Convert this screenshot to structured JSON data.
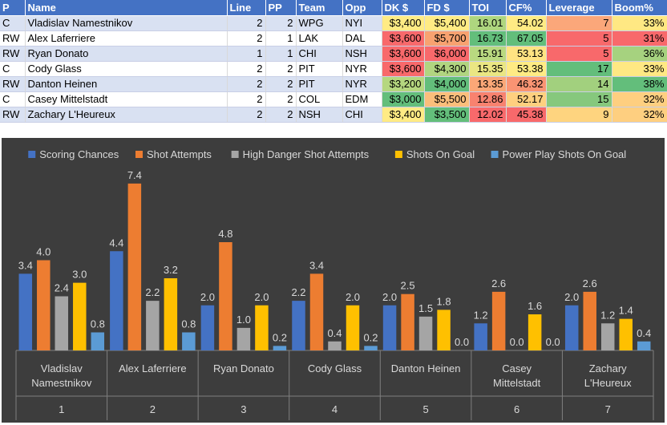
{
  "table": {
    "headers": [
      "P",
      "Name",
      "Line",
      "PP",
      "Team",
      "Opp",
      "DK $",
      "FD $",
      "TOI",
      "CF%",
      "Leverage",
      "Boom%"
    ],
    "rows": [
      {
        "P": "C",
        "Name": "Vladislav Namestnikov",
        "Line": "2",
        "PP": "2",
        "Team": "WPG",
        "Opp": "NYI",
        "DK": "$3,400",
        "FD": "$5,400",
        "TOI": "16.01",
        "CF": "54.02",
        "Leverage": "7",
        "Boom": "33%"
      },
      {
        "P": "RW",
        "Name": "Alex Laferriere",
        "Line": "2",
        "PP": "1",
        "Team": "LAK",
        "Opp": "DAL",
        "DK": "$3,600",
        "FD": "$5,700",
        "TOI": "16.73",
        "CF": "67.05",
        "Leverage": "5",
        "Boom": "31%"
      },
      {
        "P": "RW",
        "Name": "Ryan Donato",
        "Line": "1",
        "PP": "1",
        "Team": "CHI",
        "Opp": "NSH",
        "DK": "$3,600",
        "FD": "$6,000",
        "TOI": "15.91",
        "CF": "53.13",
        "Leverage": "5",
        "Boom": "36%"
      },
      {
        "P": "C",
        "Name": "Cody Glass",
        "Line": "2",
        "PP": "2",
        "Team": "PIT",
        "Opp": "NYR",
        "DK": "$3,600",
        "FD": "$4,300",
        "TOI": "15.35",
        "CF": "53.38",
        "Leverage": "17",
        "Boom": "33%"
      },
      {
        "P": "RW",
        "Name": "Danton Heinen",
        "Line": "2",
        "PP": "2",
        "Team": "PIT",
        "Opp": "NYR",
        "DK": "$3,200",
        "FD": "$4,000",
        "TOI": "13.35",
        "CF": "46.32",
        "Leverage": "14",
        "Boom": "38%"
      },
      {
        "P": "C",
        "Name": "Casey Mittelstadt",
        "Line": "2",
        "PP": "2",
        "Team": "COL",
        "Opp": "EDM",
        "DK": "$3,000",
        "FD": "$5,500",
        "TOI": "12.86",
        "CF": "52.17",
        "Leverage": "15",
        "Boom": "32%"
      },
      {
        "P": "RW",
        "Name": "Zachary L'Heureux",
        "Line": "2",
        "PP": "2",
        "Team": "NSH",
        "Opp": "CHI",
        "DK": "$3,400",
        "FD": "$3,500",
        "TOI": "12.02",
        "CF": "45.38",
        "Leverage": "9",
        "Boom": "32%"
      }
    ],
    "cell_colors": [
      {
        "DK": "#ffeb84",
        "FD": "#ffeb84",
        "TOI": "#aed67f",
        "CF": "#ffeb84",
        "Leverage": "#fba77a",
        "Boom": "#ffe883"
      },
      {
        "DK": "#f8696b",
        "FD": "#f8a270",
        "TOI": "#63be7b",
        "CF": "#63be7b",
        "Leverage": "#f8696b",
        "Boom": "#f8696b"
      },
      {
        "DK": "#f8696b",
        "FD": "#f8696b",
        "TOI": "#b9d980",
        "CF": "#ffe382",
        "Leverage": "#f8696b",
        "Boom": "#a6d27f"
      },
      {
        "DK": "#f8696b",
        "FD": "#b1d580",
        "TOI": "#eae683",
        "CF": "#ffeb84",
        "Leverage": "#63be7b",
        "Boom": "#ffe883"
      },
      {
        "DK": "#b5d77f",
        "FD": "#63be7b",
        "TOI": "#fba777",
        "CF": "#fa9473",
        "Leverage": "#a2d07e",
        "Boom": "#63be7b"
      },
      {
        "DK": "#63be7b",
        "FD": "#fbbe7b",
        "TOI": "#f8826f",
        "CF": "#ffd07f",
        "Leverage": "#86c87d",
        "Boom": "#fecf80"
      },
      {
        "DK": "#ffeb84",
        "FD": "#63be7b",
        "TOI": "#f8696b",
        "CF": "#f8696b",
        "Leverage": "#fed47f",
        "Boom": "#fecf80"
      }
    ]
  },
  "chart_data": {
    "type": "bar",
    "title": "",
    "legend_position": "top",
    "categories": [
      "Vladislav Namestnikov",
      "Alex Laferriere",
      "Ryan Donato",
      "Cody Glass",
      "Danton Heinen",
      "Casey Mittelstadt",
      "Zachary L'Heureux"
    ],
    "category_numbers": [
      "1",
      "2",
      "3",
      "4",
      "5",
      "6",
      "7"
    ],
    "series": [
      {
        "name": "Scoring Chances",
        "color": "#4472c4",
        "values": [
          3.4,
          4.4,
          2.0,
          2.2,
          2.0,
          1.2,
          2.0
        ]
      },
      {
        "name": "Shot Attempts",
        "color": "#ed7d31",
        "values": [
          4.0,
          7.4,
          4.8,
          3.4,
          2.5,
          2.6,
          2.6
        ]
      },
      {
        "name": "High Danger Shot Attempts",
        "color": "#a5a5a5",
        "values": [
          2.4,
          2.2,
          1.0,
          0.4,
          1.5,
          0.0,
          1.2
        ]
      },
      {
        "name": "Shots On Goal",
        "color": "#ffc000",
        "values": [
          3.0,
          3.2,
          2.0,
          2.0,
          1.8,
          1.6,
          1.4
        ]
      },
      {
        "name": "Power Play Shots On Goal",
        "color": "#5b9bd5",
        "values": [
          0.8,
          0.8,
          0.2,
          0.2,
          0.0,
          0.0,
          0.4
        ]
      }
    ],
    "ylim": [
      0,
      8
    ],
    "value_format": "0.0",
    "grid": false
  },
  "colors": {
    "header_blue": "#4472c4",
    "chart_bg": "#3d3d3d",
    "label_text": "#d9d9d9"
  }
}
